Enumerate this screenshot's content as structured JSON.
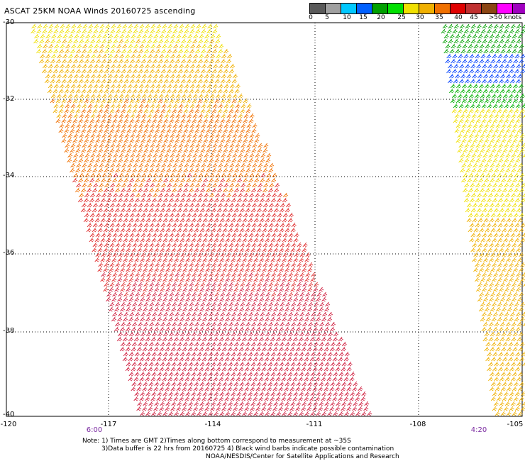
{
  "header": {
    "title": "ASCAT 25KM NOAA Winds 20160725 ascending"
  },
  "colorbar": {
    "colors": [
      "#5a5a5a",
      "#a0a0a0",
      "#00c8ff",
      "#0060ff",
      "#00a000",
      "#00e000",
      "#f0e000",
      "#f0b000",
      "#f07000",
      "#e00000",
      "#c03030",
      "#8b4513",
      "#ff00ff",
      "#a000c0",
      "#400080"
    ],
    "labels": [
      "0",
      "5",
      "10",
      "15",
      "20",
      "25",
      "30",
      "35",
      "40",
      "45",
      ">50 knots"
    ]
  },
  "axes": {
    "lat_labels": [
      "-30",
      "-32",
      "-34",
      "-36",
      "-38",
      "-40"
    ],
    "lon_labels": [
      "-120",
      "-117",
      "-114",
      "-111",
      "-108",
      "-105"
    ]
  },
  "swath_times": [
    "6:00",
    "4:20"
  ],
  "notes": [
    "Note: 1) Times are GMT 2)Times along bottom correspond to measurement at ~35S",
    "3)Data buffer is 22 hrs from 20160725 4) Black wind barbs indicate possible contamination",
    "NOAA/NESDIS/Center for Satellite Applications and Research"
  ]
}
